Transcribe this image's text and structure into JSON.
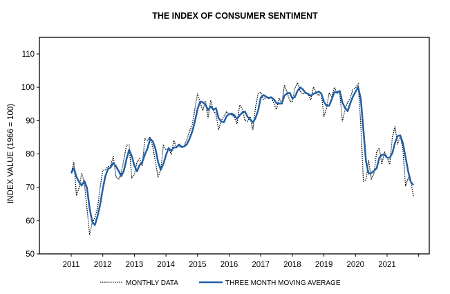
{
  "chart_data": {
    "type": "line",
    "title": "THE INDEX OF CONSUMER SENTIMENT",
    "xlabel": "",
    "ylabel": "INDEX VALUE (1966 = 100)",
    "ylim": [
      50,
      110
    ],
    "yticks": [
      "50",
      "60",
      "70",
      "80",
      "90",
      "100",
      "110"
    ],
    "xticks": [
      "2011",
      "2012",
      "2013",
      "2014",
      "2015",
      "2016",
      "2017",
      "2018",
      "2019",
      "2020",
      "2021"
    ],
    "x_start": "2011-01",
    "x_frequency": "monthly",
    "grid": false,
    "legend_position": "bottom",
    "series": [
      {
        "name": "MONTHLY DATA",
        "style": "dotted",
        "color": "#000000",
        "values": [
          74.2,
          77.5,
          67.5,
          69.8,
          74.3,
          71.5,
          63.7,
          55.7,
          59.5,
          60.8,
          63.7,
          69.9,
          75.0,
          75.3,
          76.2,
          76.4,
          79.3,
          73.2,
          72.3,
          74.3,
          78.3,
          82.6,
          82.7,
          72.9,
          73.8,
          77.6,
          78.6,
          76.4,
          84.5,
          84.1,
          85.1,
          82.1,
          77.5,
          73.2,
          75.1,
          82.5,
          81.2,
          81.6,
          80.0,
          84.1,
          81.9,
          82.5,
          81.8,
          82.5,
          84.6,
          86.9,
          88.8,
          93.6,
          98.1,
          95.4,
          93.0,
          95.9,
          90.7,
          96.1,
          93.1,
          91.9,
          87.2,
          90.0,
          91.3,
          92.6,
          92.0,
          91.7,
          91.0,
          89.0,
          94.7,
          93.5,
          90.0,
          89.8,
          91.2,
          87.2,
          93.8,
          98.2,
          98.5,
          96.3,
          96.9,
          97.0,
          97.1,
          95.1,
          93.4,
          96.8,
          95.1,
          100.7,
          98.5,
          95.9,
          95.7,
          99.7,
          101.4,
          98.8,
          98.0,
          98.2,
          97.9,
          96.2,
          100.1,
          98.6,
          97.5,
          98.3,
          91.2,
          93.8,
          98.4,
          97.2,
          100.0,
          98.2,
          98.4,
          89.8,
          93.2,
          95.5,
          96.8,
          99.3,
          99.8,
          101.0,
          89.1,
          71.8,
          72.3,
          78.1,
          72.5,
          74.1,
          80.4,
          81.8,
          76.9,
          80.7,
          79.0,
          76.8,
          84.9,
          88.3,
          82.9,
          85.5,
          81.2,
          70.3,
          72.8,
          71.7,
          67.4
        ]
      },
      {
        "name": "THREE MONTH MOVING AVERAGE",
        "style": "solid",
        "color": "#1f5fa8",
        "window": 3
      }
    ]
  }
}
